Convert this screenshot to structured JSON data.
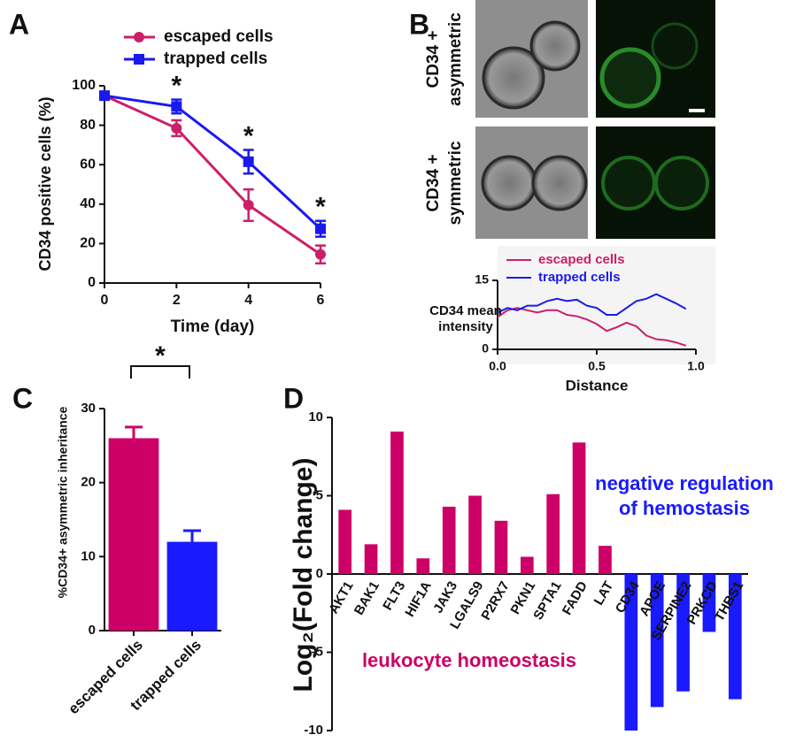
{
  "chart_data": [
    {
      "type": "line",
      "panel": "A",
      "xlabel": "Time (day)",
      "ylabel": "CD34 positive cells (%)",
      "x": [
        0,
        2,
        4,
        6
      ],
      "xlim": [
        0,
        6
      ],
      "xticks": [
        0,
        2,
        4,
        6
      ],
      "ylim": [
        0,
        100
      ],
      "yticks": [
        0,
        20,
        40,
        60,
        80,
        100
      ],
      "series": [
        {
          "name": "escaped cells",
          "color": "#cc1f6a",
          "marker": "circle",
          "values": [
            95,
            78.5,
            39.5,
            14.5
          ],
          "errors": [
            0,
            4,
            8,
            4.5
          ]
        },
        {
          "name": "trapped cells",
          "color": "#1a1aee",
          "marker": "square",
          "values": [
            95,
            89.5,
            61.5,
            27.5
          ],
          "errors": [
            0,
            3.5,
            6,
            4
          ]
        }
      ],
      "significance": {
        "label": "*",
        "x": [
          2,
          4,
          6
        ]
      }
    },
    {
      "type": "line",
      "panel": "B",
      "row_labels": [
        [
          "CD34 +",
          "asymmetric"
        ],
        [
          "CD34 +",
          "symmetric"
        ]
      ],
      "xlabel": "Distance",
      "ylabel": [
        "CD34 mean",
        "intensity"
      ],
      "x": [
        0,
        0.05,
        0.1,
        0.15,
        0.2,
        0.25,
        0.3,
        0.35,
        0.4,
        0.45,
        0.5,
        0.55,
        0.6,
        0.65,
        0.7,
        0.75,
        0.8,
        0.85,
        0.9,
        0.95
      ],
      "xlim": [
        0,
        1
      ],
      "xticks": [
        {
          "value": 0,
          "label": "0.0"
        },
        0.5,
        {
          "value": 1,
          "label": "1.0"
        }
      ],
      "ylim": [
        0,
        15
      ],
      "yticks": [
        0,
        15
      ],
      "series": [
        {
          "name": "escaped cells",
          "color": "#cc1f6a",
          "values": [
            7,
            8.5,
            9,
            8.5,
            8,
            8.5,
            8.5,
            7.5,
            7.2,
            6.5,
            5.5,
            4,
            4.8,
            5.8,
            5,
            3,
            2.2,
            2,
            1.5,
            0.8
          ]
        },
        {
          "name": "trapped cells",
          "color": "#1a1aee",
          "values": [
            8,
            9,
            8.5,
            9.5,
            9.5,
            10.5,
            11,
            10.5,
            10.8,
            9.5,
            9,
            7.5,
            7.5,
            9,
            10.5,
            11,
            12,
            11,
            10,
            8.8
          ]
        }
      ]
    },
    {
      "type": "bar",
      "panel": "C",
      "ylabel": "%CD34+ asymmetric inheritance",
      "categories": [
        "escaped cells",
        "trapped cells"
      ],
      "values": [
        26,
        12
      ],
      "errors": [
        1.5,
        1.5
      ],
      "colors": [
        "#cc0066",
        "#1a1aff"
      ],
      "ylim": [
        0,
        30
      ],
      "yticks": [
        0,
        10,
        20,
        30
      ],
      "significance": {
        "label": "*"
      }
    },
    {
      "type": "bar",
      "panel": "D",
      "ylabel": "Log₂(Fold change)",
      "categories": [
        "AKT1",
        "BAK1",
        "FLT3",
        "HIF1A",
        "JAK3",
        "LGALS9",
        "P2RX7",
        "PKN1",
        "SPTA1",
        "FADD",
        "LAT",
        "CD34",
        "APOE",
        "SERPINE2",
        "PRKCD",
        "THBS1"
      ],
      "values": [
        4.1,
        1.9,
        9.1,
        1.0,
        4.3,
        5.0,
        3.4,
        1.1,
        5.1,
        8.4,
        1.8,
        -10,
        -8.5,
        -7.5,
        -3.7,
        -8.0
      ],
      "colors": [
        "#cc0066",
        "#cc0066",
        "#cc0066",
        "#cc0066",
        "#cc0066",
        "#cc0066",
        "#cc0066",
        "#cc0066",
        "#cc0066",
        "#cc0066",
        "#cc0066",
        "#1a1aff",
        "#1a1aff",
        "#1a1aff",
        "#1a1aff",
        "#1a1aff"
      ],
      "ylim": [
        -10,
        10
      ],
      "yticks": [
        -10,
        -5,
        0,
        5,
        10
      ],
      "annotations": {
        "negative": [
          "negative regulation",
          "of hemostasis"
        ],
        "positive": "leukocyte homeostasis"
      }
    }
  ]
}
